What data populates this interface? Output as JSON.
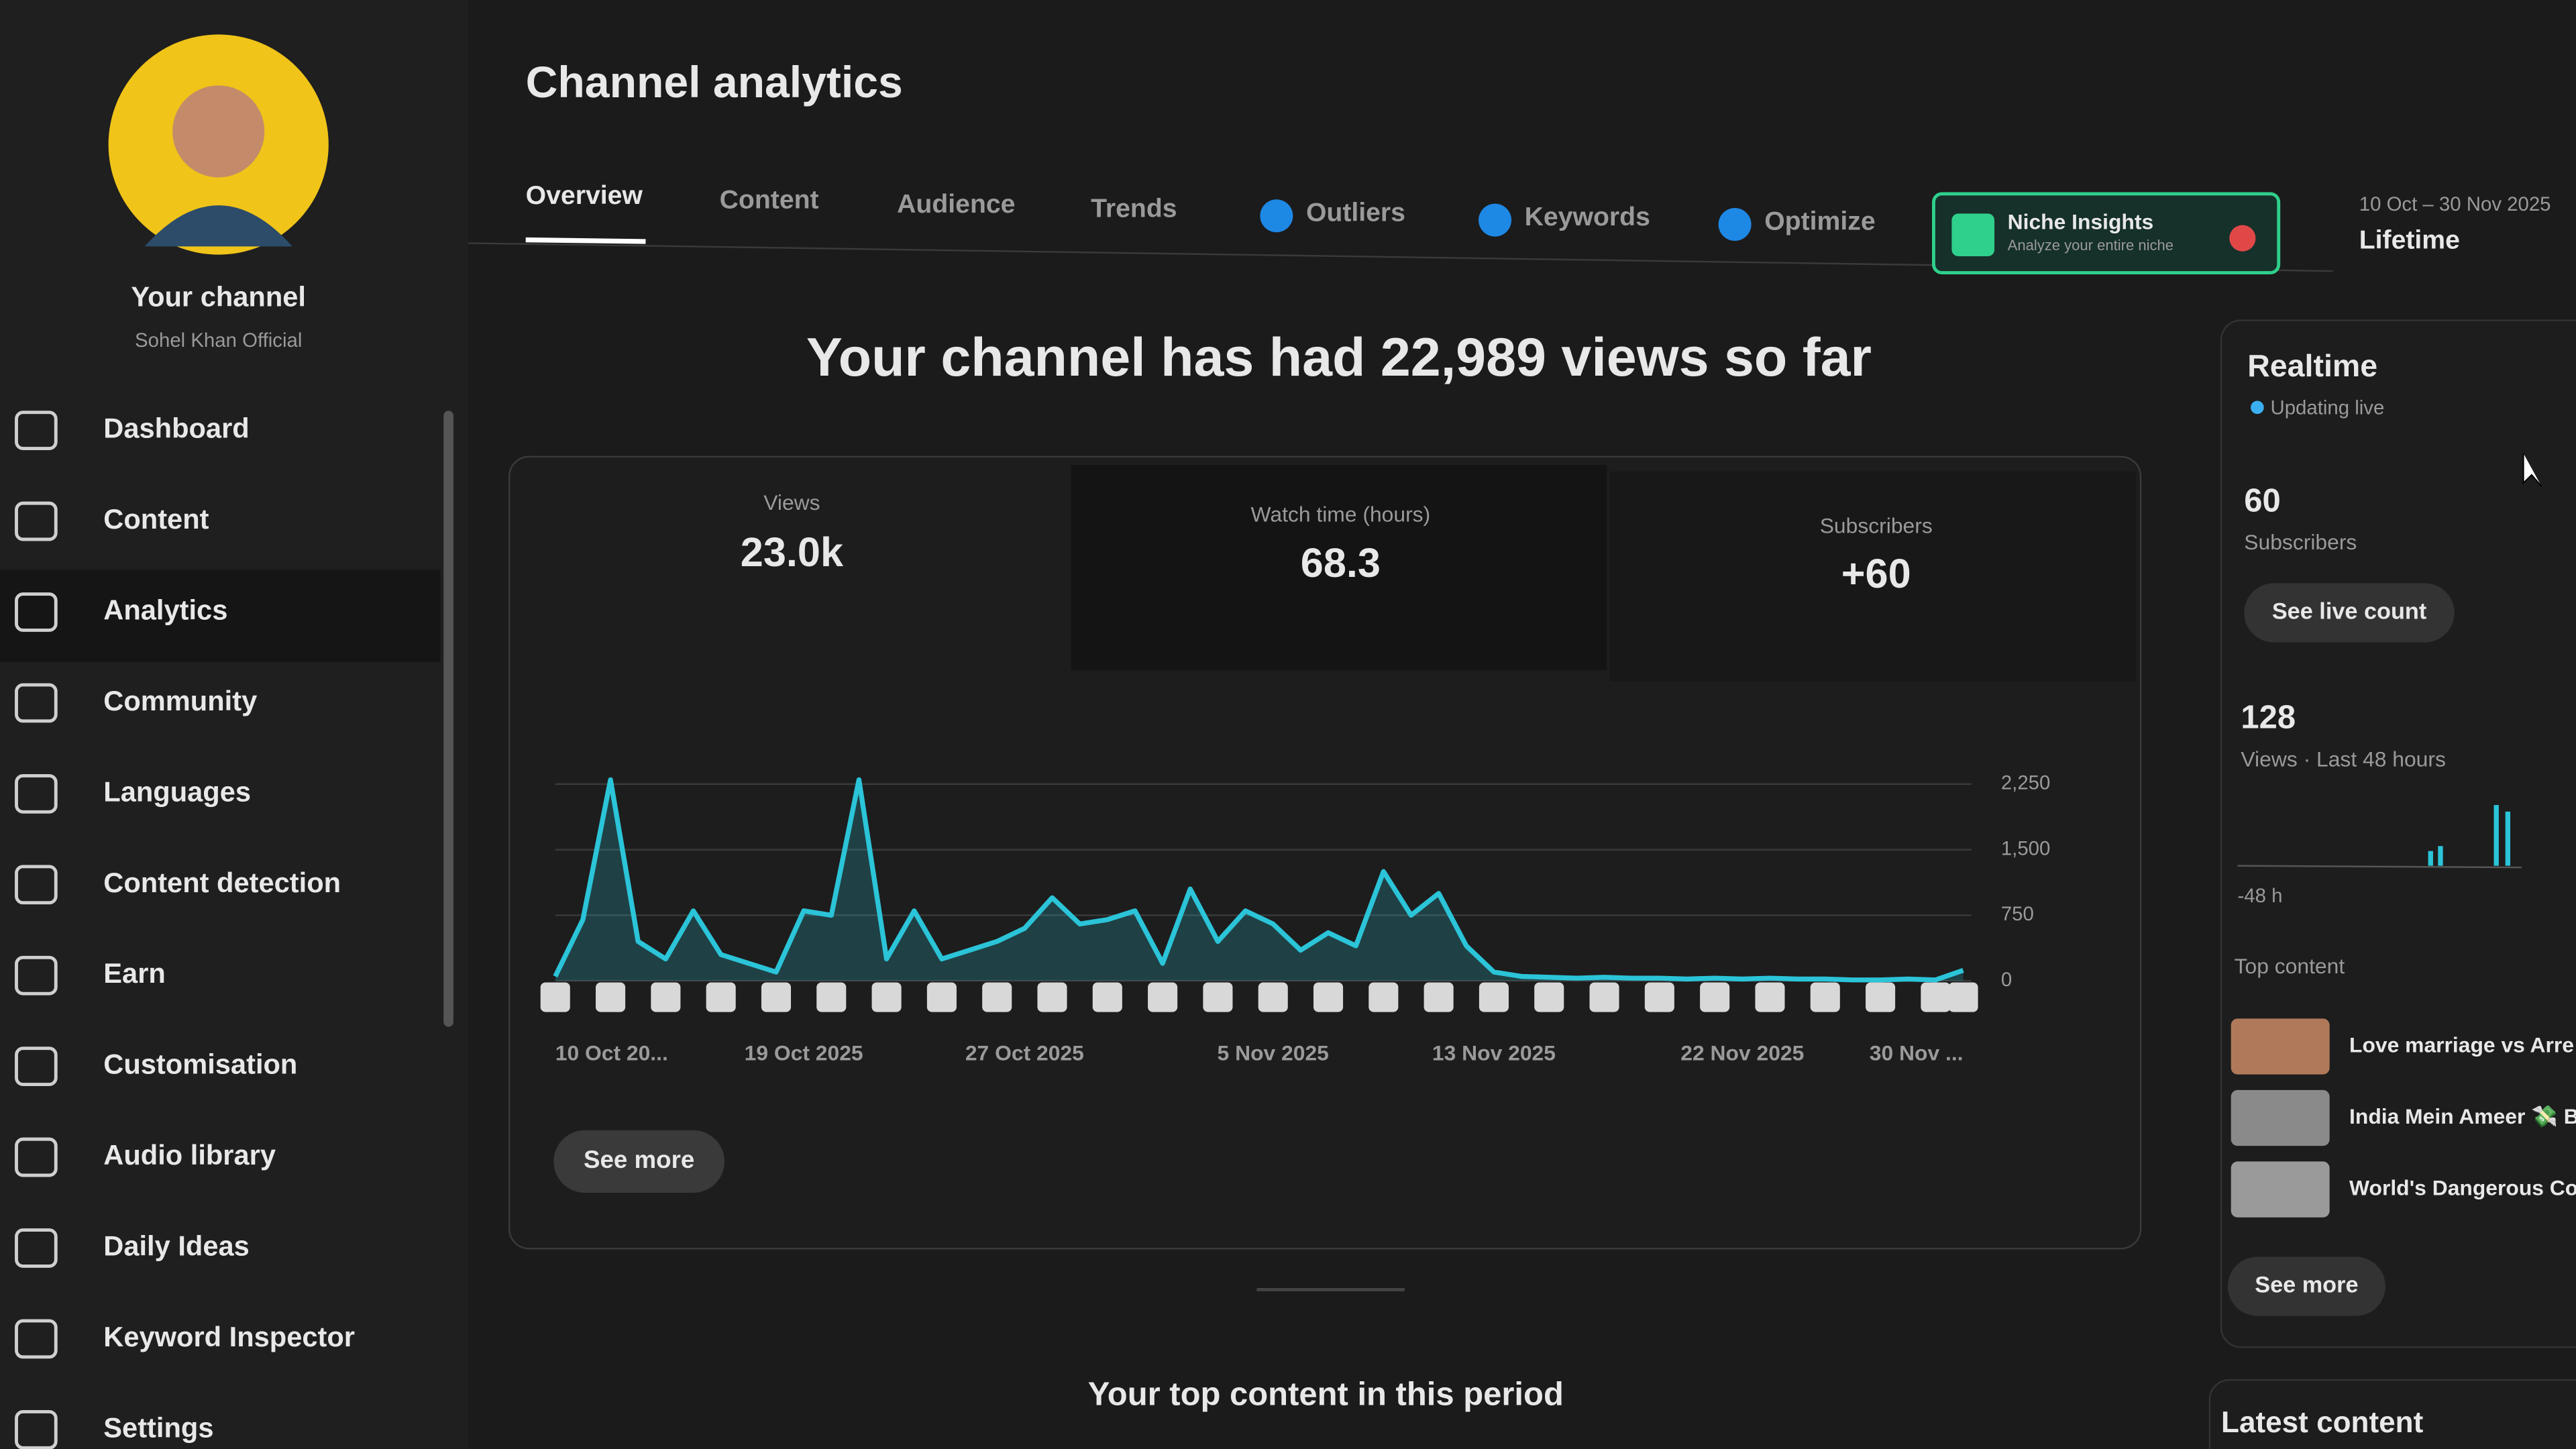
{
  "sidebar": {
    "channel_title": "Your channel",
    "channel_name": "Sohel Khan Official",
    "nav": [
      "Dashboard",
      "Content",
      "Analytics",
      "Community",
      "Languages",
      "Content detection",
      "Earn",
      "Customisation",
      "Audio library",
      "Daily Ideas",
      "Keyword Inspector",
      "Settings"
    ]
  },
  "header": {
    "title": "Channel analytics",
    "tabs": [
      "Overview",
      "Content",
      "Audience",
      "Trends",
      "Outliers",
      "Keywords",
      "Optimize"
    ],
    "niche": {
      "title": "Niche Insights",
      "subtitle": "Analyze your entire niche"
    },
    "date_range": "10 Oct – 30 Nov 2025",
    "period": "Lifetime"
  },
  "headline": "Your channel has had 22,989 views so far",
  "metrics": [
    {
      "label": "Views",
      "value": "23.0k"
    },
    {
      "label": "Watch time (hours)",
      "value": "68.3"
    },
    {
      "label": "Subscribers",
      "value": "+60"
    }
  ],
  "chart": {
    "type": "line",
    "color": "#2bc4d8",
    "categories": [
      "10 Oct 20...",
      null,
      null,
      null,
      null,
      null,
      null,
      null,
      null,
      "19 Oct 2025",
      null,
      null,
      null,
      null,
      null,
      null,
      null,
      "27 Oct 2025",
      null,
      null,
      null,
      null,
      null,
      null,
      null,
      null,
      "5 Nov 2025",
      null,
      null,
      null,
      null,
      null,
      null,
      null,
      "13 Nov 2025",
      null,
      null,
      null,
      null,
      null,
      null,
      null,
      null,
      "22 Nov 2025",
      null,
      null,
      null,
      null,
      null,
      null,
      null,
      "30 Nov ..."
    ],
    "values": [
      50,
      700,
      2300,
      450,
      250,
      800,
      300,
      200,
      100,
      800,
      750,
      2300,
      250,
      800,
      250,
      350,
      450,
      600,
      950,
      650,
      700,
      800,
      200,
      1050,
      450,
      800,
      650,
      350,
      550,
      400,
      1250,
      750,
      1000,
      400,
      100,
      50,
      40,
      30,
      40,
      30,
      30,
      20,
      30,
      20,
      30,
      20,
      20,
      10,
      10,
      20,
      10,
      120
    ],
    "ylim": [
      0,
      2500
    ],
    "yticks": [
      0,
      750,
      {
        "value": 1500,
        "label": "1,500"
      },
      {
        "value": 2250,
        "label": "2,250"
      }
    ],
    "grid": true
  },
  "see_more": "See more",
  "top_content_title": "Your top content in this period",
  "realtime": {
    "title": "Realtime",
    "status": "Updating live",
    "subscribers": "60",
    "subscribers_label": "Subscribers",
    "live_button": "See live count",
    "views": "128",
    "views_label": "Views · Last 48 hours",
    "axis_label": "-48 h",
    "top_content_title": "Top content",
    "top_content": [
      "Love marriage vs Arre",
      "India Mein Ameer 💸 B",
      "World's Dangerous Cor"
    ],
    "see_more": "See more",
    "latest_content": "Latest content"
  }
}
